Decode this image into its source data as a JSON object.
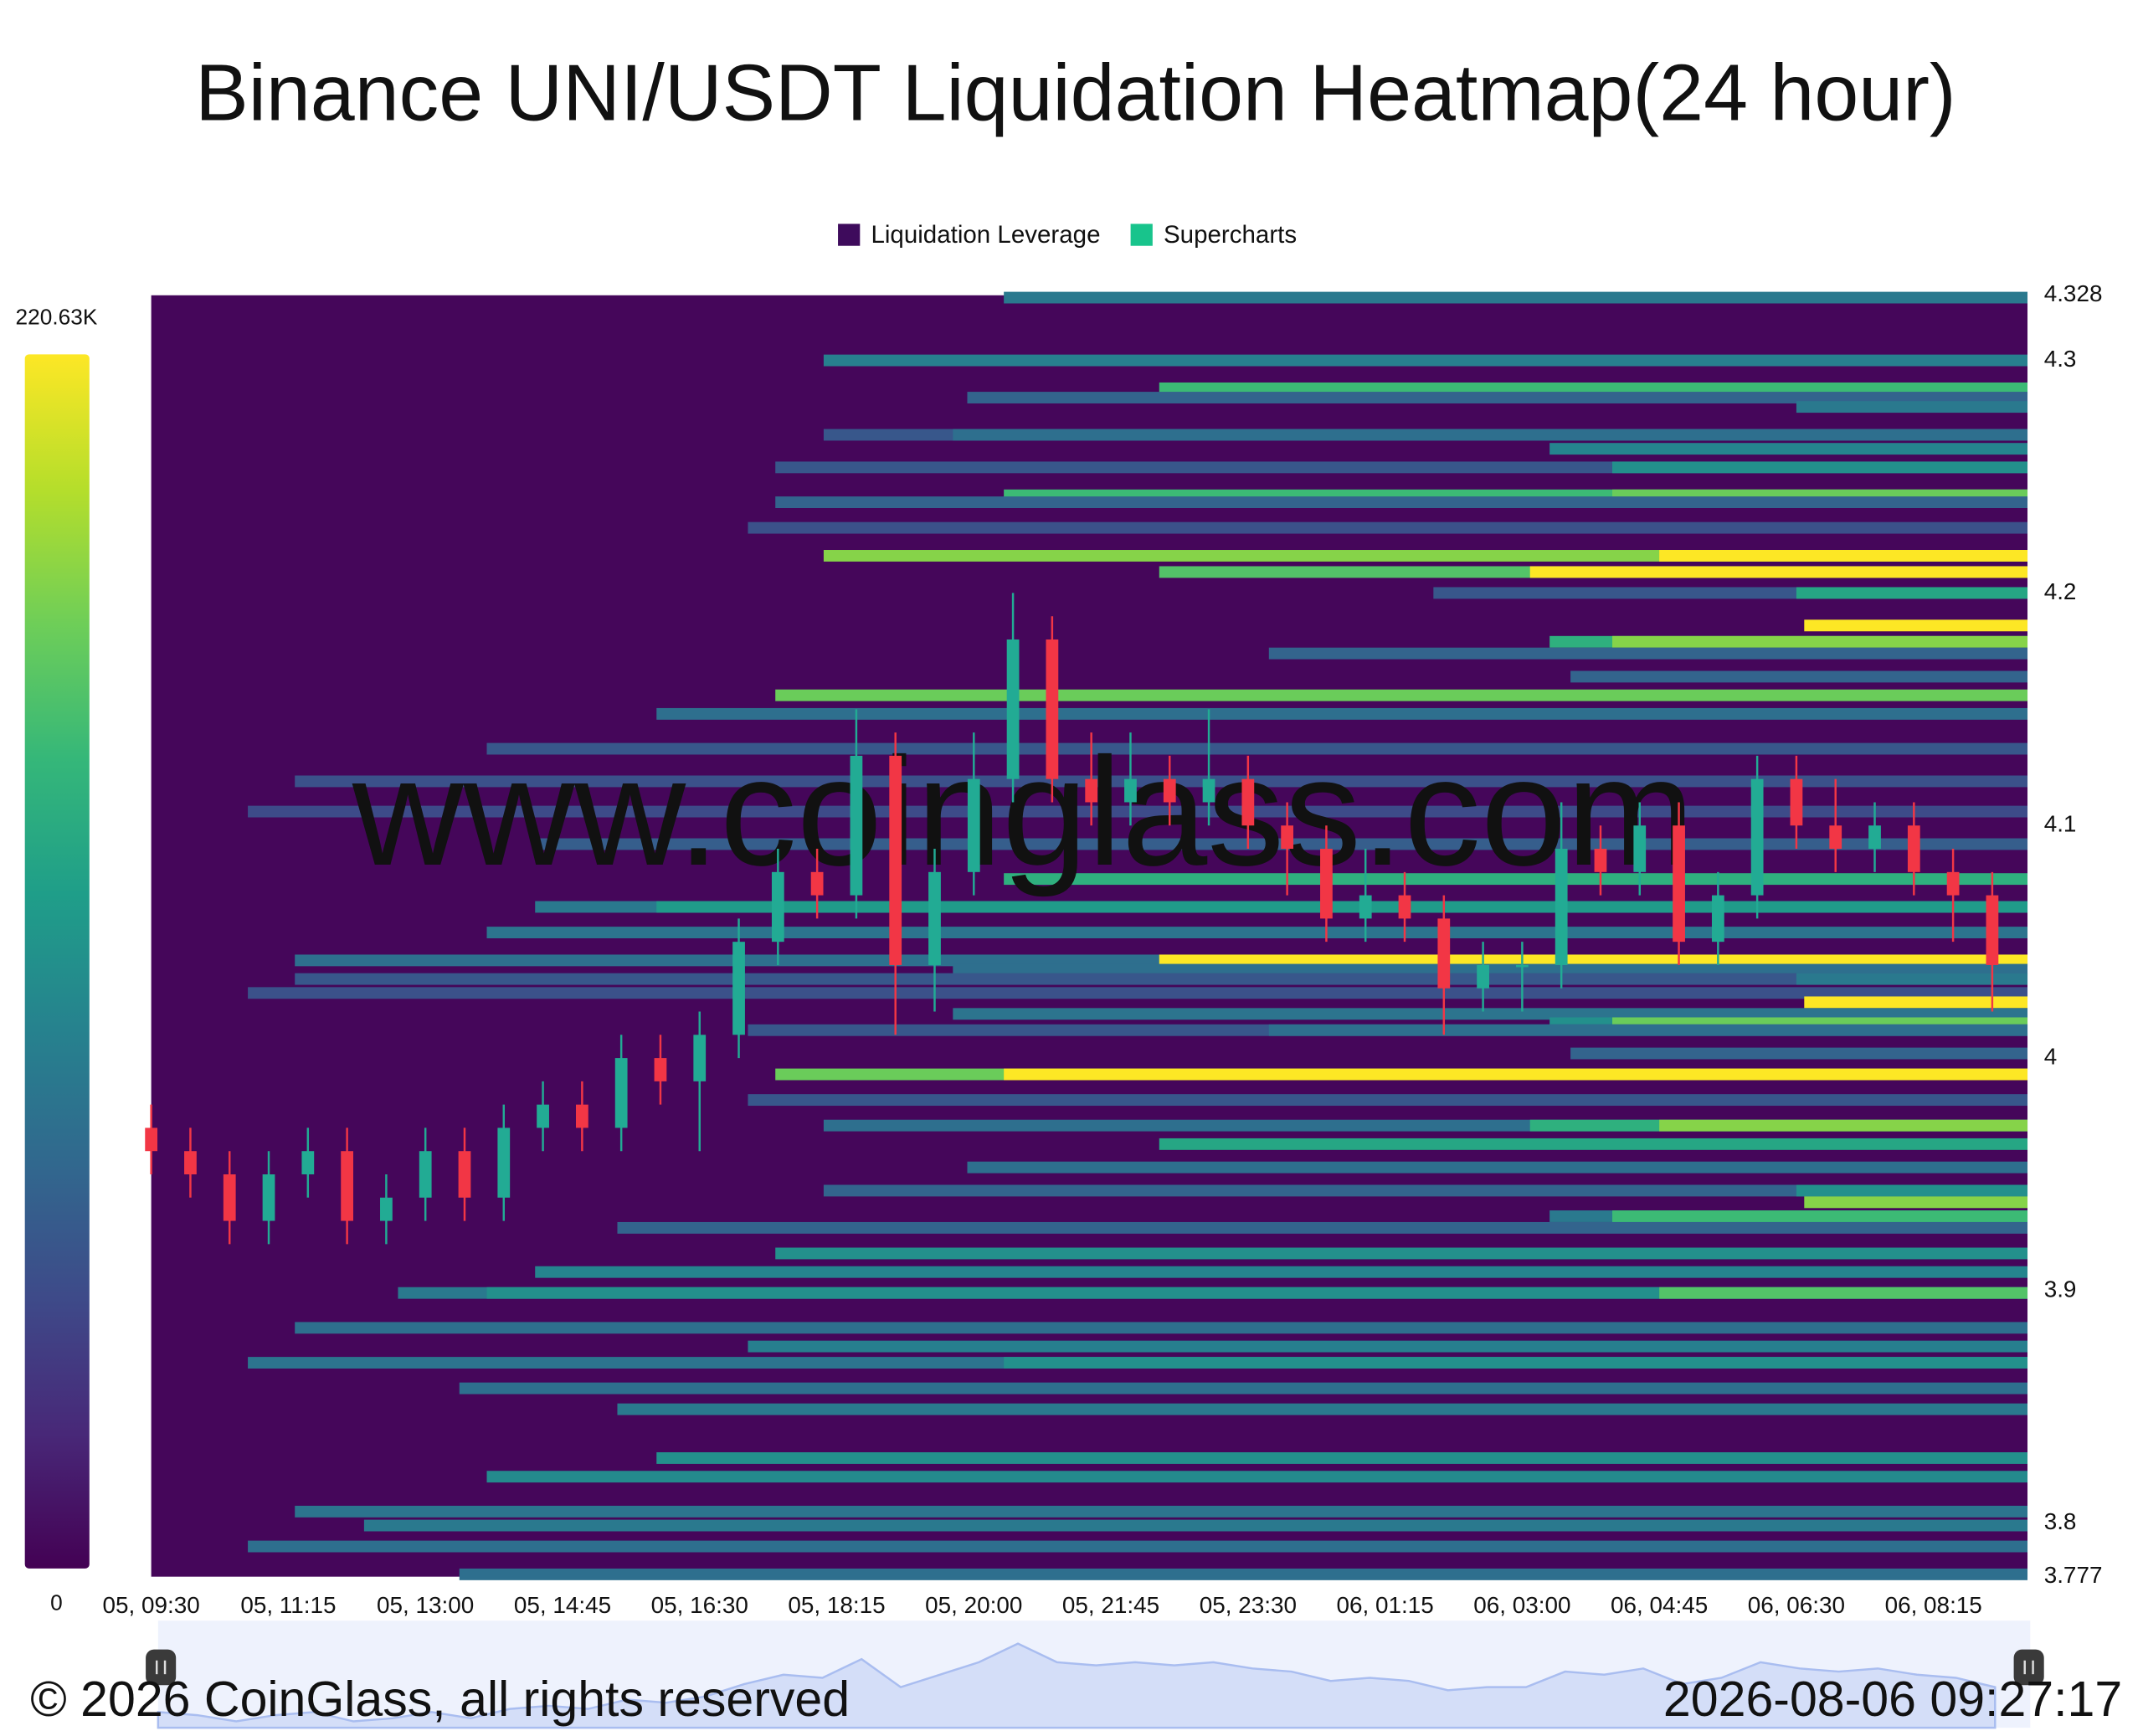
{
  "chart_data": {
    "type": "heatmap",
    "title": "Binance UNI/USDT Liquidation Heatmap(24 hour)",
    "legend": [
      {
        "name": "Liquidation Leverage",
        "color": "#3e0b5c"
      },
      {
        "name": "Supercharts",
        "color": "#18c48c"
      }
    ],
    "watermark": "www.coinglass.com",
    "background": "#45065a",
    "colorscale": [
      "#440154",
      "#482878",
      "#3e4a89",
      "#31688e",
      "#26828e",
      "#1f9e89",
      "#35b779",
      "#6ece58",
      "#b5de2b",
      "#fde725"
    ],
    "zlim": [
      0,
      220630
    ],
    "colorbar_ticks": [
      0,
      {
        "value": 220630,
        "label": "220.63K"
      }
    ],
    "xlim": [
      "05, 09:30",
      "06, 09:27"
    ],
    "xticks": [
      "05, 09:30",
      "05, 11:15",
      "05, 13:00",
      "05, 14:45",
      "05, 16:30",
      "05, 18:15",
      "05, 20:00",
      "05, 21:45",
      "05, 23:30",
      "06, 01:15",
      "06, 03:00",
      "06, 04:45",
      "06, 06:30",
      "06, 08:15"
    ],
    "ylim": [
      3.777,
      4.328
    ],
    "yticks": [
      3.777,
      3.8,
      3.9,
      4,
      4.1,
      4.2,
      4.3,
      4.328
    ],
    "bands": [
      {
        "price": 4.327,
        "start": "05, 20:23",
        "value": 90000
      },
      {
        "price": 4.3,
        "start": "05, 18:05",
        "value": 95000
      },
      {
        "price": 4.288,
        "start": "05, 22:22",
        "value": 150000
      },
      {
        "price": 4.284,
        "start": "05, 19:55",
        "value": 70000
      },
      {
        "price": 4.28,
        "start": "06, 06:30",
        "value": 90000
      },
      {
        "price": 4.268,
        "start": "05, 18:05",
        "value": 60000
      },
      {
        "price": 4.268,
        "start": "05, 19:44",
        "value": 80000
      },
      {
        "price": 4.262,
        "start": "06, 03:21",
        "value": 100000
      },
      {
        "price": 4.254,
        "start": "05, 17:28",
        "value": 60000
      },
      {
        "price": 4.254,
        "start": "06, 04:09",
        "value": 110000
      },
      {
        "price": 4.242,
        "start": "05, 20:23",
        "value": 150000
      },
      {
        "price": 4.242,
        "start": "06, 04:09",
        "value": 170000
      },
      {
        "price": 4.239,
        "start": "05, 17:28",
        "value": 70000
      },
      {
        "price": 4.228,
        "start": "05, 17:07",
        "value": 55000
      },
      {
        "price": 4.216,
        "start": "05, 18:05",
        "value": 180000
      },
      {
        "price": 4.216,
        "start": "06, 04:45",
        "value": 220630
      },
      {
        "price": 4.209,
        "start": "05, 22:22",
        "value": 160000
      },
      {
        "price": 4.209,
        "start": "06, 03:06",
        "value": 220630
      },
      {
        "price": 4.2,
        "start": "06, 01:52",
        "value": 60000
      },
      {
        "price": 4.2,
        "start": "06, 06:30",
        "value": 130000
      },
      {
        "price": 4.186,
        "start": "06, 06:36",
        "value": 220630
      },
      {
        "price": 4.179,
        "start": "06, 03:21",
        "value": 140000
      },
      {
        "price": 4.179,
        "start": "06, 04:09",
        "value": 180000
      },
      {
        "price": 4.174,
        "start": "05, 23:46",
        "value": 70000
      },
      {
        "price": 4.164,
        "start": "06, 03:37",
        "value": 70000
      },
      {
        "price": 4.156,
        "start": "05, 17:28",
        "value": 170000
      },
      {
        "price": 4.148,
        "start": "05, 15:57",
        "value": 80000
      },
      {
        "price": 4.133,
        "start": "05, 13:47",
        "value": 60000
      },
      {
        "price": 4.119,
        "start": "05, 11:20",
        "value": 55000
      },
      {
        "price": 4.106,
        "start": "05, 10:44",
        "value": 50000
      },
      {
        "price": 4.092,
        "start": "05, 14:24",
        "value": 65000
      },
      {
        "price": 4.077,
        "start": "05, 20:23",
        "value": 140000
      },
      {
        "price": 4.065,
        "start": "05, 14:24",
        "value": 90000
      },
      {
        "price": 4.065,
        "start": "05, 15:57",
        "value": 120000
      },
      {
        "price": 4.054,
        "start": "05, 13:47",
        "value": 85000
      },
      {
        "price": 4.042,
        "start": "05, 11:20",
        "value": 80000
      },
      {
        "price": 4.042,
        "start": "05, 22:22",
        "value": 220630
      },
      {
        "price": 4.038,
        "start": "05, 19:44",
        "value": 80000
      },
      {
        "price": 4.034,
        "start": "05, 11:20",
        "value": 60000
      },
      {
        "price": 4.034,
        "start": "06, 06:30",
        "value": 90000
      },
      {
        "price": 4.028,
        "start": "05, 10:44",
        "value": 55000
      },
      {
        "price": 4.024,
        "start": "06, 06:36",
        "value": 220630
      },
      {
        "price": 4.019,
        "start": "05, 19:44",
        "value": 85000
      },
      {
        "price": 4.015,
        "start": "06, 03:21",
        "value": 110000
      },
      {
        "price": 4.015,
        "start": "06, 04:09",
        "value": 170000
      },
      {
        "price": 4.012,
        "start": "05, 17:07",
        "value": 60000
      },
      {
        "price": 4.012,
        "start": "05, 23:46",
        "value": 80000
      },
      {
        "price": 4.002,
        "start": "06, 03:37",
        "value": 70000
      },
      {
        "price": 3.993,
        "start": "05, 17:28",
        "value": 170000
      },
      {
        "price": 3.993,
        "start": "05, 20:23",
        "value": 220630
      },
      {
        "price": 3.982,
        "start": "05, 17:07",
        "value": 60000
      },
      {
        "price": 3.971,
        "start": "05, 18:05",
        "value": 80000
      },
      {
        "price": 3.971,
        "start": "06, 03:06",
        "value": 140000
      },
      {
        "price": 3.971,
        "start": "06, 04:45",
        "value": 180000
      },
      {
        "price": 3.963,
        "start": "05, 22:22",
        "value": 130000
      },
      {
        "price": 3.953,
        "start": "05, 19:55",
        "value": 80000
      },
      {
        "price": 3.943,
        "start": "05, 18:05",
        "value": 70000
      },
      {
        "price": 3.943,
        "start": "06, 06:30",
        "value": 110000
      },
      {
        "price": 3.938,
        "start": "06, 06:36",
        "value": 180000
      },
      {
        "price": 3.932,
        "start": "06, 03:21",
        "value": 90000
      },
      {
        "price": 3.932,
        "start": "06, 04:09",
        "value": 150000
      },
      {
        "price": 3.927,
        "start": "05, 15:27",
        "value": 70000
      },
      {
        "price": 3.916,
        "start": "05, 17:28",
        "value": 110000
      },
      {
        "price": 3.908,
        "start": "05, 14:24",
        "value": 100000
      },
      {
        "price": 3.899,
        "start": "05, 12:39",
        "value": 90000
      },
      {
        "price": 3.899,
        "start": "05, 13:47",
        "value": 110000
      },
      {
        "price": 3.899,
        "start": "06, 04:45",
        "value": 160000
      },
      {
        "price": 3.884,
        "start": "05, 11:20",
        "value": 80000
      },
      {
        "price": 3.876,
        "start": "05, 17:07",
        "value": 95000
      },
      {
        "price": 3.869,
        "start": "05, 10:44",
        "value": 85000
      },
      {
        "price": 3.869,
        "start": "05, 20:23",
        "value": 110000
      },
      {
        "price": 3.858,
        "start": "05, 13:26",
        "value": 80000
      },
      {
        "price": 3.849,
        "start": "05, 15:27",
        "value": 90000
      },
      {
        "price": 3.828,
        "start": "05, 15:57",
        "value": 110000
      },
      {
        "price": 3.82,
        "start": "05, 13:47",
        "value": 105000
      },
      {
        "price": 3.805,
        "start": "05, 11:20",
        "value": 85000
      },
      {
        "price": 3.799,
        "start": "05, 12:13",
        "value": 90000
      },
      {
        "price": 3.79,
        "start": "05, 10:44",
        "value": 80000
      },
      {
        "price": 3.778,
        "start": "05, 13:26",
        "value": 80000
      }
    ],
    "candles": {
      "up_color": "#22ab94",
      "down_color": "#f23645",
      "x": [
        "05, 09:30",
        "05, 10:00",
        "05, 10:30",
        "05, 11:00",
        "05, 11:30",
        "05, 12:00",
        "05, 12:30",
        "05, 13:00",
        "05, 13:30",
        "05, 14:00",
        "05, 14:30",
        "05, 15:00",
        "05, 15:30",
        "05, 16:00",
        "05, 16:30",
        "05, 17:00",
        "05, 17:30",
        "05, 18:00",
        "05, 18:30",
        "05, 19:00",
        "05, 19:30",
        "05, 20:00",
        "05, 20:30",
        "05, 21:00",
        "05, 21:30",
        "05, 22:00",
        "05, 22:30",
        "05, 23:00",
        "05, 23:30",
        "06, 00:00",
        "06, 00:30",
        "06, 01:00",
        "06, 01:30",
        "06, 02:00",
        "06, 02:30",
        "06, 03:00",
        "06, 03:30",
        "06, 04:00",
        "06, 04:30",
        "06, 05:00",
        "06, 05:30",
        "06, 06:00",
        "06, 06:30",
        "06, 07:00",
        "06, 07:30",
        "06, 08:00",
        "06, 08:30",
        "06, 09:00"
      ],
      "open": [
        3.97,
        3.96,
        3.95,
        3.93,
        3.95,
        3.96,
        3.93,
        3.94,
        3.96,
        3.94,
        3.97,
        3.98,
        3.97,
        4.0,
        3.99,
        4.01,
        4.05,
        4.08,
        4.07,
        4.13,
        4.04,
        4.08,
        4.12,
        4.18,
        4.12,
        4.11,
        4.12,
        4.11,
        4.12,
        4.1,
        4.09,
        4.06,
        4.07,
        4.06,
        4.03,
        4.04,
        4.04,
        4.09,
        4.08,
        4.1,
        4.05,
        4.07,
        4.12,
        4.1,
        4.09,
        4.1,
        4.08,
        4.07
      ],
      "high": [
        3.98,
        3.97,
        3.96,
        3.96,
        3.97,
        3.97,
        3.95,
        3.97,
        3.97,
        3.98,
        3.99,
        3.99,
        4.01,
        4.01,
        4.02,
        4.06,
        4.09,
        4.09,
        4.15,
        4.14,
        4.09,
        4.14,
        4.2,
        4.19,
        4.14,
        4.14,
        4.13,
        4.15,
        4.13,
        4.11,
        4.1,
        4.09,
        4.08,
        4.07,
        4.05,
        4.05,
        4.11,
        4.1,
        4.11,
        4.11,
        4.08,
        4.13,
        4.13,
        4.12,
        4.11,
        4.11,
        4.09,
        4.08
      ],
      "low": [
        3.95,
        3.94,
        3.92,
        3.92,
        3.94,
        3.92,
        3.92,
        3.93,
        3.93,
        3.93,
        3.96,
        3.96,
        3.96,
        3.98,
        3.96,
        4.0,
        4.04,
        4.06,
        4.06,
        4.01,
        4.02,
        4.07,
        4.11,
        4.11,
        4.1,
        4.1,
        4.1,
        4.1,
        4.09,
        4.07,
        4.05,
        4.05,
        4.05,
        4.01,
        4.02,
        4.02,
        4.03,
        4.07,
        4.07,
        4.04,
        4.04,
        4.06,
        4.09,
        4.08,
        4.08,
        4.07,
        4.05,
        4.02
      ],
      "close": [
        3.96,
        3.95,
        3.93,
        3.95,
        3.96,
        3.93,
        3.94,
        3.96,
        3.94,
        3.97,
        3.98,
        3.97,
        4.0,
        3.99,
        4.01,
        4.05,
        4.08,
        4.07,
        4.13,
        4.04,
        4.08,
        4.12,
        4.18,
        4.12,
        4.11,
        4.12,
        4.11,
        4.12,
        4.1,
        4.09,
        4.06,
        4.07,
        4.06,
        4.03,
        4.04,
        4.04,
        4.09,
        4.08,
        4.1,
        4.05,
        4.07,
        4.12,
        4.1,
        4.09,
        4.1,
        4.08,
        4.07,
        4.04
      ]
    }
  },
  "footer": {
    "copyright": "© 2026 CoinGlass, all rights reserved",
    "timestamp": "2026-08-06 09:27:17"
  }
}
